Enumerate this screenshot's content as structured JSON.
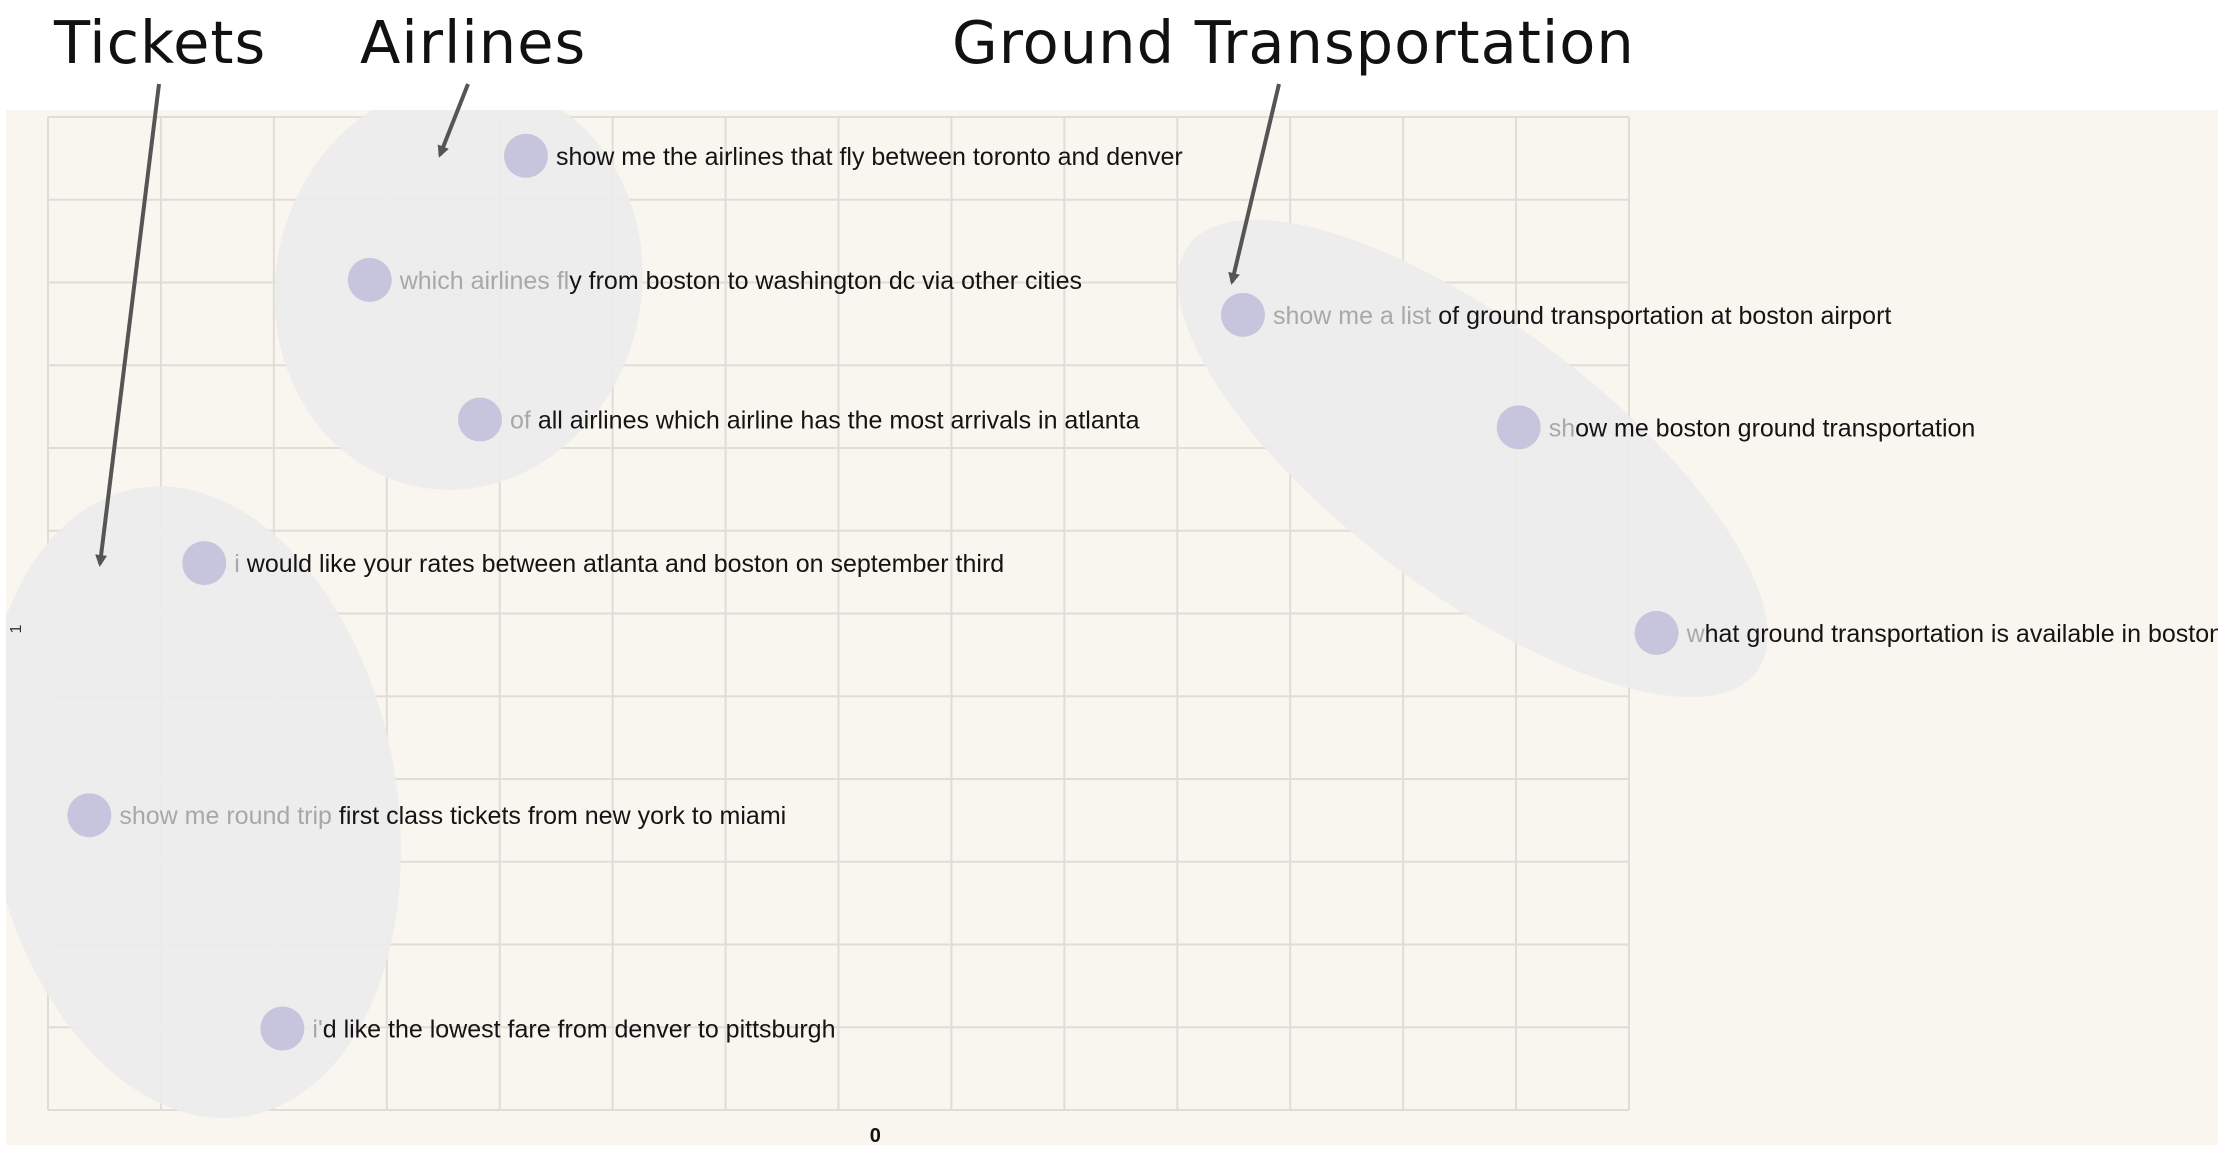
{
  "annotations": {
    "tickets": "Tickets",
    "airlines": "Airlines",
    "ground": "Ground Transportation"
  },
  "colors": {
    "panel_bg": "#f9f5ef",
    "grid": "#e0dcd7",
    "cluster": "#ececec",
    "point": "#c7c5de",
    "text_faded": "#a8a8a8",
    "text": "#141414",
    "arrow": "#555555"
  },
  "chart_data": {
    "type": "scatter",
    "title": "",
    "xlabel": "",
    "ylabel": "",
    "x_ticks": [
      "0"
    ],
    "y_ticks": [
      "1"
    ],
    "grid": true,
    "xlim": [
      -0.9,
      0.82
    ],
    "ylim": [
      -0.55,
      0.73
    ],
    "points": [
      {
        "faded": "",
        "text": "show me the airlines that fly between toronto and denver",
        "x": -0.38,
        "y": 0.68,
        "cluster": "Airlines"
      },
      {
        "faded": "which airlines fl",
        "text": "y from boston to washington dc via other cities",
        "x": -0.55,
        "y": 0.52,
        "cluster": "Airlines"
      },
      {
        "faded": "of",
        "text": " all airlines which airline has the most arrivals in atlanta",
        "x": -0.43,
        "y": 0.34,
        "cluster": "Airlines"
      },
      {
        "faded": "i",
        "text": " would like your rates between atlanta and boston on september third",
        "x": -0.73,
        "y": 0.155,
        "cluster": "Tickets"
      },
      {
        "faded": "show me round trip",
        "text": " first class tickets from new york to miami",
        "x": -0.855,
        "y": -0.17,
        "cluster": "Tickets"
      },
      {
        "faded": "i'",
        "text": "d like the lowest fare from denver to pittsburgh",
        "x": -0.645,
        "y": -0.445,
        "cluster": "Tickets"
      },
      {
        "faded": "show me a list",
        "text": " of ground transportation at boston airport",
        "x": 0.4,
        "y": 0.475,
        "cluster": "Ground Transportation"
      },
      {
        "faded": "sh",
        "text": "ow me boston ground transportation",
        "x": 0.7,
        "y": 0.33,
        "cluster": "Ground Transportation"
      },
      {
        "faded": "w",
        "text": "hat ground transportation is available in boston",
        "x": 0.85,
        "y": 0.065,
        "cluster": "Ground Transportation"
      }
    ]
  }
}
